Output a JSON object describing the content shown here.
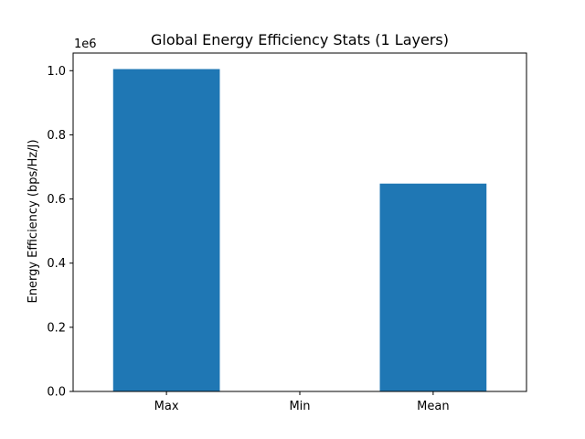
{
  "chart_data": {
    "type": "bar",
    "title": "Global Energy Efficiency Stats (1 Layers)",
    "xlabel": "",
    "ylabel": "Energy Efficiency (bps/Hz/J)",
    "y_offset_label": "1e6",
    "categories": [
      "Max",
      "Min",
      "Mean"
    ],
    "values": [
      1005000,
      0,
      648000
    ],
    "ylim": [
      0,
      1055000
    ],
    "yticks": [
      0,
      200000,
      400000,
      600000,
      800000,
      1000000
    ],
    "ytick_labels": [
      "0.0",
      "0.2",
      "0.4",
      "0.6",
      "0.8",
      "1.0"
    ],
    "bar_color": "#1f77b4",
    "grid": false,
    "legend": "none"
  }
}
